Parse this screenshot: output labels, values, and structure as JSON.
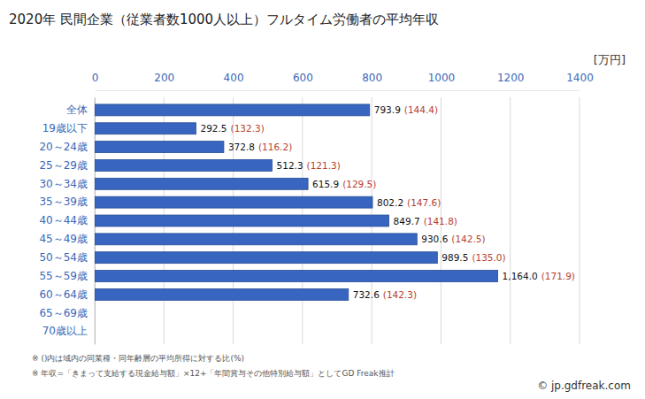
{
  "chart_data": {
    "type": "bar",
    "orientation": "horizontal",
    "title": "2020年 民間企業（従業者数1000人以上）フルタイム労働者の平均年収",
    "x_label": "[万円]",
    "categories": [
      "全体",
      "19歳以下",
      "20～24歳",
      "25～29歳",
      "30～34歳",
      "35～39歳",
      "40～44歳",
      "45～49歳",
      "50～54歳",
      "55～59歳",
      "60～64歳",
      "65～69歳",
      "70歳以上"
    ],
    "values": [
      793.9,
      292.5,
      372.8,
      512.3,
      615.9,
      802.2,
      849.7,
      930.6,
      989.5,
      1164.0,
      732.6,
      null,
      null
    ],
    "value_labels": [
      "793.9",
      "292.5",
      "372.8",
      "512.3",
      "615.9",
      "802.2",
      "849.7",
      "930.6",
      "989.5",
      "1,164.0",
      "732.6",
      null,
      null
    ],
    "ratio_labels": [
      "(144.4)",
      "(132.3)",
      "(116.2)",
      "(121.3)",
      "(129.5)",
      "(147.6)",
      "(141.8)",
      "(142.5)",
      "(135.0)",
      "(171.9)",
      "(142.3)",
      null,
      null
    ],
    "color": "#3765c0",
    "xlim": [
      0,
      1400
    ],
    "xticks": [
      0,
      200,
      400,
      600,
      800,
      1000,
      1200,
      1400
    ],
    "grid": true,
    "data_labels": true,
    "notes": [
      "※ ()内は域内の同業種・同年齢層の平均所得に対する比(%)",
      "※ 年収=「きまって支給する現金給与額」×12+「年間賞与その他特別給与額」としてGD Freak推計"
    ],
    "source": "© jp.gdfreak.com"
  }
}
